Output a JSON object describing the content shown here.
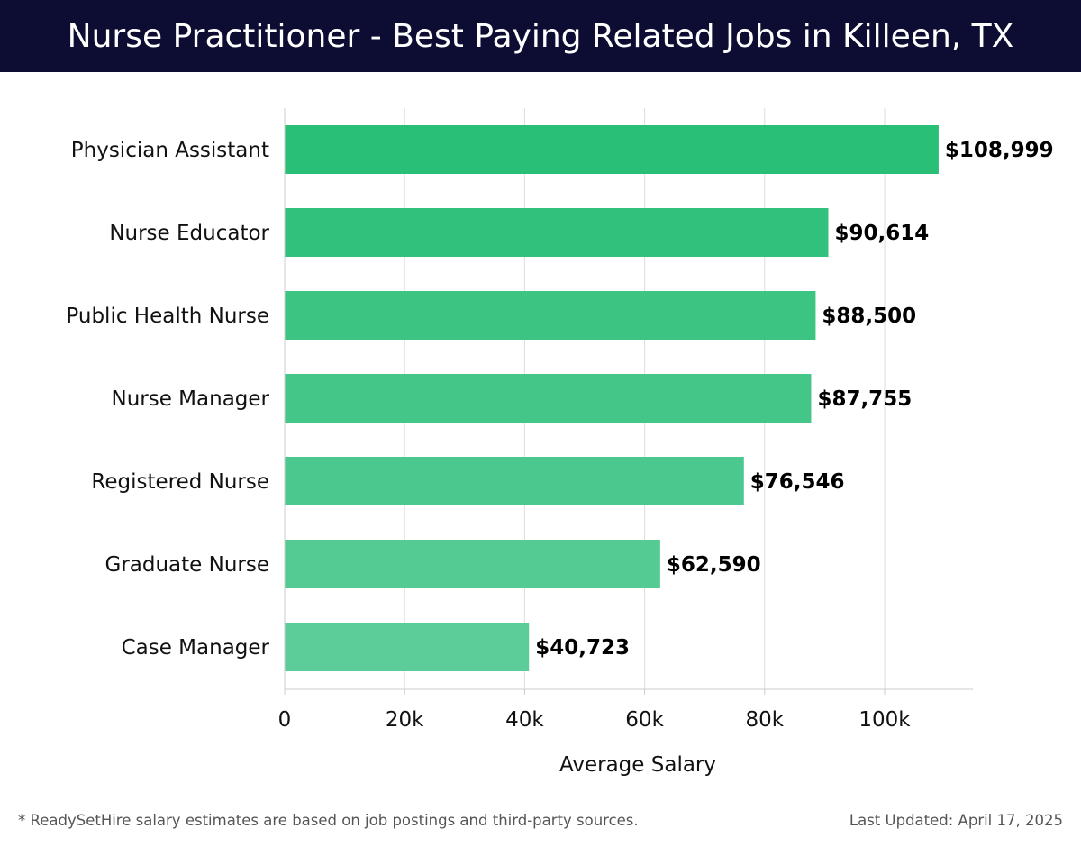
{
  "header": {
    "title": "Nurse Practitioner - Best Paying Related Jobs in Killeen, TX"
  },
  "colors": {
    "header_bg": "#0d0d33",
    "bar_top": "#2abf77",
    "bar_bottom": "#5ccd98",
    "grid": "#dddddd",
    "axis": "#cccccc"
  },
  "chart_data": {
    "type": "bar",
    "orientation": "horizontal",
    "categories": [
      "Physician Assistant",
      "Nurse Educator",
      "Public Health Nurse",
      "Nurse Manager",
      "Registered Nurse",
      "Graduate Nurse",
      "Case Manager"
    ],
    "values": [
      108999,
      90614,
      88500,
      87755,
      76546,
      62590,
      40723
    ],
    "value_labels": [
      "$108,999",
      "$90,614",
      "$88,500",
      "$87,755",
      "$76,546",
      "$62,590",
      "$40,723"
    ],
    "xlabel": "Average Salary",
    "ylabel": "",
    "xlim": [
      0,
      115000
    ],
    "x_ticks": [
      0,
      20000,
      40000,
      60000,
      80000,
      100000
    ],
    "x_tick_labels": [
      "0",
      "20k",
      "40k",
      "60k",
      "80k",
      "100k"
    ],
    "grid": "vertical"
  },
  "footer": {
    "note": "* ReadySetHire salary estimates are based on job postings and third-party sources.",
    "updated": "Last Updated: April 17, 2025"
  }
}
